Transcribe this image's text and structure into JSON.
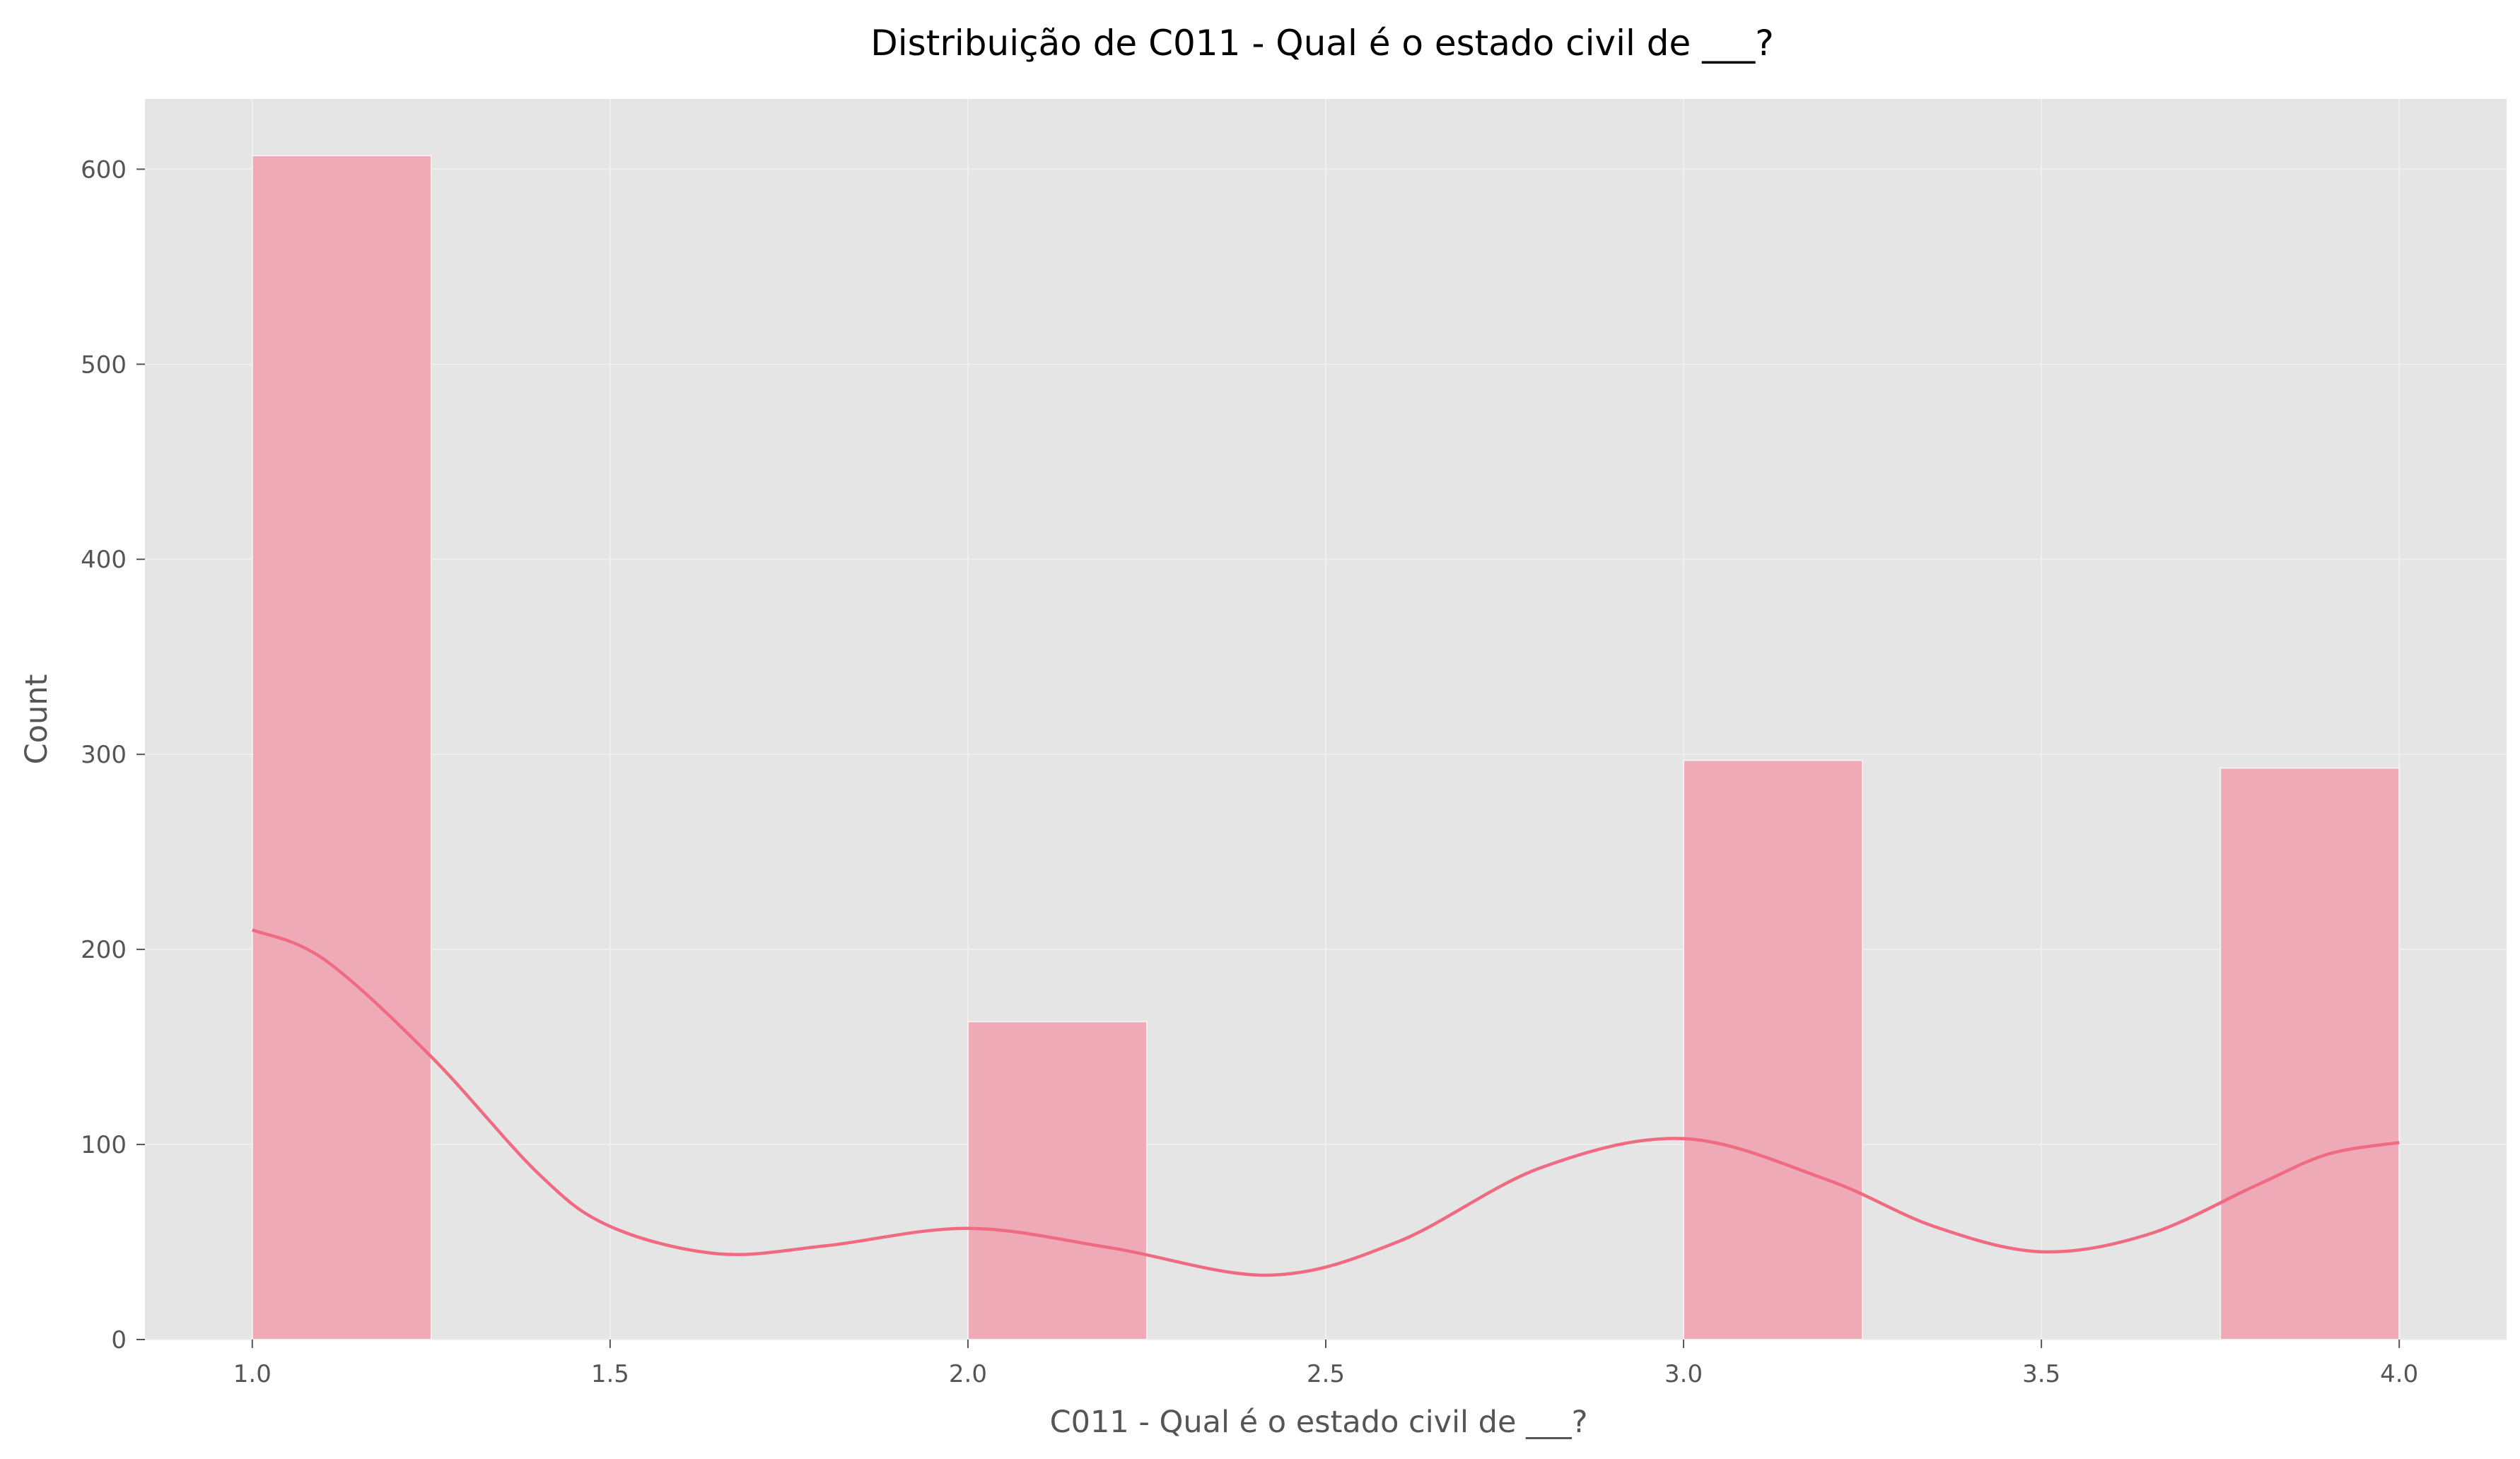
{
  "chart_data": {
    "type": "bar",
    "subtype": "histogram-with-kde",
    "title": "Distribuição de C011 - Qual é o estado civil de ___?",
    "xlabel": "C011 - Qual é o estado civil de ___?",
    "ylabel": "Count",
    "xlim": [
      0.85,
      4.15
    ],
    "ylim": [
      0,
      636
    ],
    "xticks": [
      1.0,
      1.5,
      2.0,
      2.5,
      3.0,
      3.5,
      4.0
    ],
    "xtick_labels": [
      "1.0",
      "1.5",
      "2.0",
      "2.5",
      "3.0",
      "3.5",
      "4.0"
    ],
    "yticks": [
      0,
      100,
      200,
      300,
      400,
      500,
      600
    ],
    "ytick_labels": [
      "0",
      "100",
      "200",
      "300",
      "400",
      "500",
      "600"
    ],
    "grid": true,
    "bars": [
      {
        "x0": 1.0,
        "x1": 1.25,
        "count": 607
      },
      {
        "x0": 2.0,
        "x1": 2.25,
        "count": 163
      },
      {
        "x0": 3.0,
        "x1": 3.25,
        "count": 297
      },
      {
        "x0": 3.75,
        "x1": 4.0,
        "count": 293
      }
    ],
    "kde": {
      "x": [
        1.0,
        1.1,
        1.25,
        1.4,
        1.5,
        1.65,
        1.8,
        2.0,
        2.2,
        2.42,
        2.6,
        2.8,
        3.0,
        3.2,
        3.35,
        3.5,
        3.65,
        3.8,
        3.9,
        4.0
      ],
      "y": [
        210,
        195,
        145,
        85,
        58,
        44,
        48,
        57,
        47,
        33,
        50,
        88,
        103,
        82,
        58,
        45,
        54,
        79,
        95,
        101
      ]
    },
    "colors": {
      "bar_fill": "#eeaab7",
      "bar_edge": "#f5f0f1",
      "kde_line": "#f06a82",
      "plot_background": "#e5e5e5",
      "grid": "#efefef",
      "text": "#555555",
      "title": "#000000"
    }
  }
}
